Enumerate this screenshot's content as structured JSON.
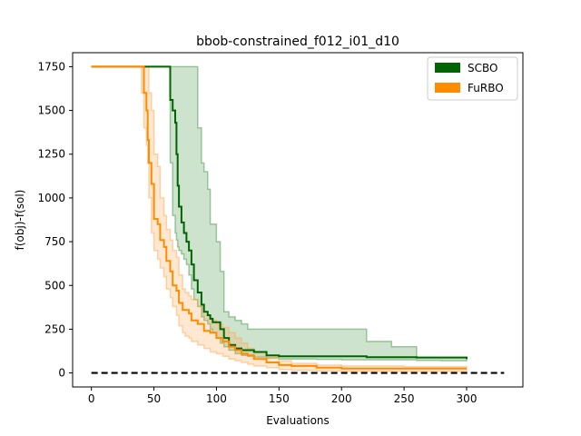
{
  "chart_data": {
    "type": "line",
    "title": "bbob-constrained_f012_i01_d10",
    "xlabel": "Evaluations",
    "ylabel": "f(obj)-f(sol)",
    "xlim": [
      -15,
      345
    ],
    "ylim": [
      -80,
      1830
    ],
    "xticks": [
      0,
      50,
      100,
      150,
      200,
      250,
      300
    ],
    "yticks": [
      0,
      250,
      500,
      750,
      1000,
      1250,
      1500,
      1750
    ],
    "grid": false,
    "legend_position": "top-right",
    "reference_line": {
      "y": 0,
      "x_start": 0,
      "x_end": 330,
      "style": "dashed",
      "color": "#000000"
    },
    "series": [
      {
        "name": "SCBO",
        "color": "#006400",
        "band_color": "#3a8f3a",
        "x": [
          0,
          60,
          63,
          65,
          67,
          68,
          69,
          70,
          72,
          74,
          76,
          78,
          80,
          82,
          85,
          88,
          90,
          93,
          95,
          97,
          100,
          103,
          106,
          110,
          115,
          120,
          125,
          130,
          140,
          150,
          160,
          180,
          200,
          220,
          240,
          260,
          280,
          300
        ],
        "mean": [
          1750,
          1750,
          1560,
          1500,
          1430,
          1250,
          1070,
          950,
          860,
          800,
          750,
          700,
          620,
          530,
          460,
          390,
          350,
          330,
          310,
          290,
          290,
          250,
          200,
          160,
          140,
          130,
          130,
          120,
          100,
          95,
          95,
          95,
          95,
          90,
          90,
          88,
          88,
          80
        ],
        "lower": [
          1750,
          1750,
          1200,
          900,
          800,
          760,
          720,
          700,
          680,
          650,
          620,
          560,
          480,
          420,
          380,
          320,
          300,
          280,
          250,
          230,
          200,
          170,
          150,
          130,
          110,
          100,
          95,
          90,
          85,
          80,
          80,
          78,
          75,
          75,
          75,
          72,
          70,
          65
        ],
        "upper": [
          1750,
          1750,
          1750,
          1750,
          1750,
          1750,
          1750,
          1750,
          1750,
          1750,
          1750,
          1750,
          1750,
          1750,
          1400,
          1200,
          1150,
          1050,
          850,
          850,
          750,
          580,
          350,
          320,
          300,
          280,
          250,
          250,
          250,
          250,
          250,
          250,
          250,
          180,
          150,
          90,
          90,
          90
        ]
      },
      {
        "name": "FuRBO",
        "color": "#ff8c00",
        "band_color": "#ffa54a",
        "x": [
          0,
          40,
          42,
          44,
          45,
          46,
          48,
          50,
          53,
          55,
          58,
          60,
          63,
          65,
          68,
          70,
          73,
          75,
          78,
          80,
          85,
          90,
          95,
          100,
          105,
          110,
          115,
          120,
          125,
          130,
          140,
          150,
          160,
          180,
          200,
          250,
          300
        ],
        "mean": [
          1750,
          1750,
          1600,
          1500,
          1330,
          1200,
          1080,
          880,
          850,
          760,
          720,
          640,
          580,
          500,
          470,
          400,
          360,
          360,
          340,
          300,
          280,
          240,
          230,
          200,
          180,
          150,
          130,
          110,
          100,
          80,
          60,
          45,
          40,
          30,
          25,
          25,
          25
        ],
        "lower": [
          1750,
          1600,
          1400,
          1300,
          1200,
          1000,
          800,
          700,
          650,
          600,
          550,
          480,
          430,
          380,
          330,
          270,
          230,
          210,
          200,
          180,
          160,
          140,
          120,
          110,
          95,
          80,
          70,
          60,
          50,
          40,
          30,
          20,
          15,
          12,
          10,
          10,
          10
        ],
        "upper": [
          1750,
          1750,
          1750,
          1750,
          1750,
          1600,
          1500,
          1250,
          1180,
          1000,
          900,
          820,
          760,
          700,
          660,
          560,
          480,
          460,
          440,
          420,
          380,
          330,
          300,
          280,
          260,
          230,
          200,
          170,
          140,
          120,
          90,
          70,
          55,
          45,
          40,
          35,
          35
        ]
      }
    ]
  }
}
